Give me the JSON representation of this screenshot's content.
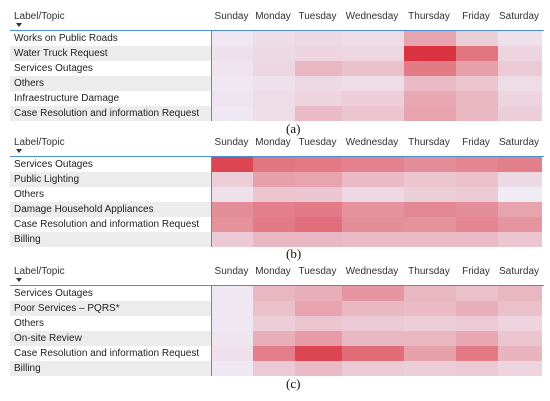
{
  "chart_data": [
    {
      "type": "heatmap",
      "caption": "(a)",
      "corner_label": "Label/Topic",
      "columns": [
        "Sunday",
        "Monday",
        "Tuesday",
        "Wednesday",
        "Thursday",
        "Friday",
        "Saturday"
      ],
      "rows": [
        "Works on Public Roads",
        "Water Truck Request",
        "Services Outages",
        "Others",
        "Infraestructure Damage",
        "Case Resolution and information Request"
      ],
      "values": [
        [
          0.05,
          0.1,
          0.12,
          0.1,
          0.4,
          0.18,
          0.08
        ],
        [
          0.08,
          0.12,
          0.15,
          0.14,
          1.0,
          0.65,
          0.15
        ],
        [
          0.06,
          0.14,
          0.3,
          0.25,
          0.62,
          0.42,
          0.2
        ],
        [
          0.04,
          0.08,
          0.12,
          0.1,
          0.28,
          0.22,
          0.1
        ],
        [
          0.06,
          0.1,
          0.15,
          0.18,
          0.38,
          0.3,
          0.15
        ],
        [
          0.05,
          0.1,
          0.28,
          0.22,
          0.4,
          0.3,
          0.18
        ]
      ]
    },
    {
      "type": "heatmap",
      "caption": "(b)",
      "corner_label": "Label/Topic",
      "columns": [
        "Sunday",
        "Monday",
        "Tuesday",
        "Wednesday",
        "Thursday",
        "Friday",
        "Saturday"
      ],
      "rows": [
        "Services Outages",
        "Public Lighting",
        "Others",
        "Damage Household Appliances",
        "Case Resolution and information Request",
        "Billing"
      ],
      "values": [
        [
          0.9,
          0.65,
          0.62,
          0.58,
          0.52,
          0.56,
          0.6
        ],
        [
          0.18,
          0.42,
          0.4,
          0.28,
          0.22,
          0.25,
          0.12
        ],
        [
          0.08,
          0.22,
          0.22,
          0.12,
          0.18,
          0.2,
          0.02
        ],
        [
          0.52,
          0.6,
          0.62,
          0.5,
          0.55,
          0.52,
          0.4
        ],
        [
          0.5,
          0.62,
          0.68,
          0.52,
          0.5,
          0.56,
          0.48
        ],
        [
          0.2,
          0.3,
          0.3,
          0.28,
          0.28,
          0.28,
          0.22
        ]
      ]
    },
    {
      "type": "heatmap",
      "caption": "(c)",
      "corner_label": "Label/Topic",
      "columns": [
        "Sunday",
        "Monday",
        "Tuesday",
        "Wednesday",
        "Thursday",
        "Friday",
        "Saturday"
      ],
      "rows": [
        "Services Outages",
        "Poor Services – PQRS*",
        "Others",
        "On-site Review",
        "Case Resolution and information Request",
        "Billing"
      ],
      "values": [
        [
          0.05,
          0.3,
          0.35,
          0.48,
          0.3,
          0.25,
          0.3
        ],
        [
          0.05,
          0.25,
          0.4,
          0.3,
          0.28,
          0.35,
          0.25
        ],
        [
          0.04,
          0.18,
          0.22,
          0.2,
          0.18,
          0.2,
          0.15
        ],
        [
          0.06,
          0.35,
          0.45,
          0.3,
          0.3,
          0.38,
          0.22
        ],
        [
          0.08,
          0.6,
          0.9,
          0.7,
          0.42,
          0.62,
          0.32
        ],
        [
          0.04,
          0.2,
          0.28,
          0.2,
          0.18,
          0.2,
          0.15
        ]
      ]
    }
  ],
  "colors": {
    "high": "#d9333f",
    "low": "#f0f0fa",
    "grid_line": "#4a90d9",
    "row_alt": "#ececec"
  }
}
